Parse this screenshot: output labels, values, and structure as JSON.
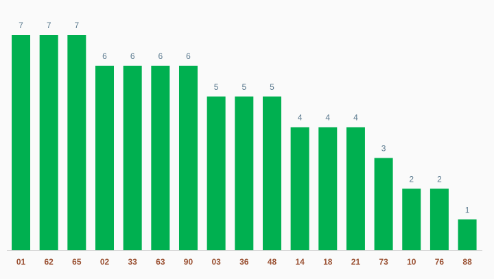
{
  "chart_data": {
    "type": "bar",
    "categories": [
      "01",
      "62",
      "65",
      "02",
      "33",
      "63",
      "90",
      "03",
      "36",
      "48",
      "14",
      "18",
      "21",
      "73",
      "10",
      "76",
      "88"
    ],
    "values": [
      7,
      7,
      7,
      6,
      6,
      6,
      6,
      5,
      5,
      5,
      4,
      4,
      4,
      3,
      2,
      2,
      1
    ],
    "color": "#00b050"
  }
}
